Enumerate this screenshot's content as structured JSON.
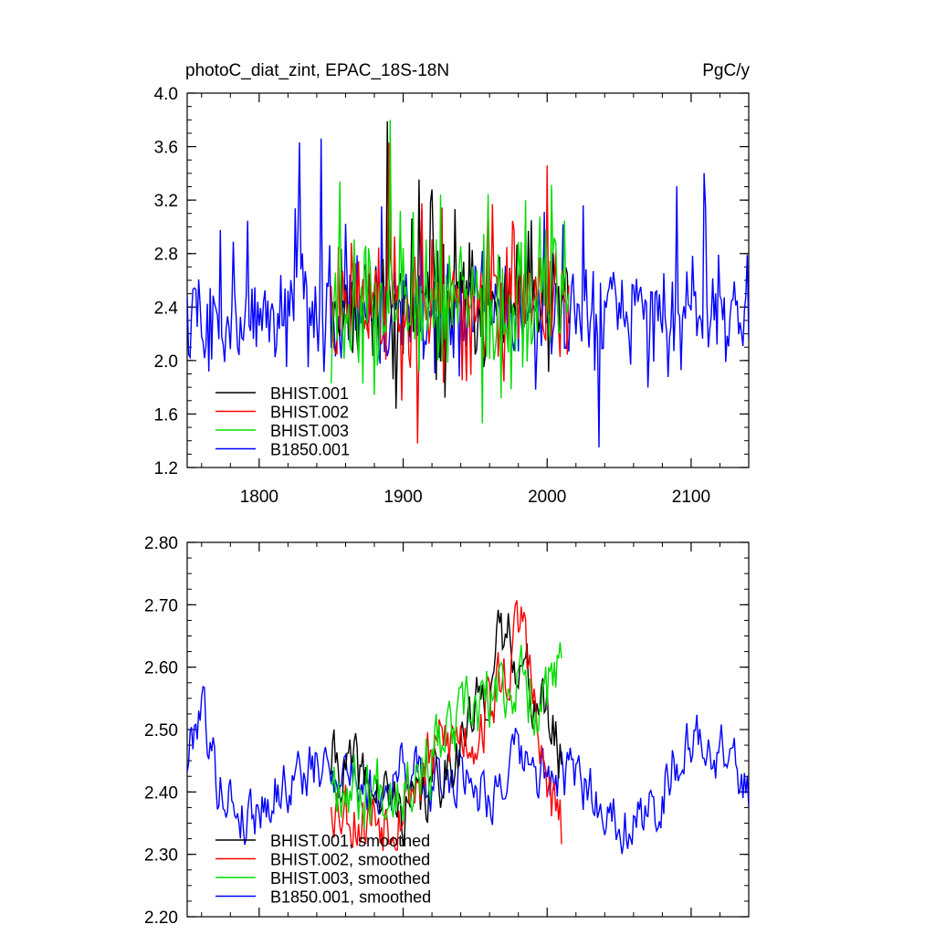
{
  "page": {
    "title": "photoC_diat_zint, EPAC_18S-18N",
    "units": "PgC/y"
  },
  "chart_data": [
    {
      "type": "line",
      "title": "photoC_diat_zint, EPAC_18S-18N",
      "units_label": "PgC/y",
      "xlim": [
        1750,
        2140
      ],
      "ylim": [
        1.2,
        4.0
      ],
      "x_ticks": [
        1800,
        1900,
        2000,
        2100
      ],
      "x_tick_labels": [
        "1800",
        "1900",
        "2000",
        "2100"
      ],
      "y_ticks": [
        1.2,
        1.6,
        2.0,
        2.4,
        2.8,
        3.2,
        3.6,
        4.0
      ],
      "y_tick_labels": [
        "1.2",
        "1.6",
        "2.0",
        "2.4",
        "2.8",
        "3.2",
        "3.6",
        "4.0"
      ],
      "legend_position": "bottom-left",
      "series": [
        {
          "name": "BHIST.001",
          "color": "#000000",
          "start": 1850,
          "end": 2015,
          "mean": 2.42,
          "amp": 0.5,
          "peak": 3.79,
          "low": 1.64,
          "seed": 11
        },
        {
          "name": "BHIST.002",
          "color": "#ff0000",
          "start": 1850,
          "end": 2015,
          "mean": 2.42,
          "amp": 0.5,
          "peak": 3.63,
          "low": 1.38,
          "seed": 23
        },
        {
          "name": "BHIST.003",
          "color": "#00dd00",
          "start": 1850,
          "end": 2015,
          "mean": 2.42,
          "amp": 0.5,
          "peak": 3.8,
          "low": 1.53,
          "seed": 37
        },
        {
          "name": "B1850.001",
          "color": "#0000ff",
          "start": 1750,
          "end": 2140,
          "mean": 2.35,
          "amp": 0.45,
          "peak": 3.66,
          "low": 1.35,
          "seed": 5
        }
      ]
    },
    {
      "type": "line",
      "xlim": [
        1750,
        2140
      ],
      "ylim": [
        2.2,
        2.8
      ],
      "x_ticks": [
        1800,
        1900,
        2000,
        2100
      ],
      "y_ticks": [
        2.2,
        2.3,
        2.4,
        2.5,
        2.6,
        2.7,
        2.8
      ],
      "y_tick_labels": [
        "2.20",
        "2.30",
        "2.40",
        "2.50",
        "2.60",
        "2.70",
        "2.80"
      ],
      "legend_position": "bottom-left",
      "series": [
        {
          "name": "BHIST.001, smoothed",
          "color": "#000000",
          "start": 1850,
          "end": 2010,
          "anchors": [
            [
              1850,
              2.45
            ],
            [
              1870,
              2.42
            ],
            [
              1890,
              2.38
            ],
            [
              1910,
              2.37
            ],
            [
              1930,
              2.45
            ],
            [
              1950,
              2.52
            ],
            [
              1965,
              2.62
            ],
            [
              1975,
              2.66
            ],
            [
              1985,
              2.58
            ],
            [
              2000,
              2.52
            ],
            [
              2010,
              2.45
            ]
          ],
          "noise": 0.045,
          "seed": 41
        },
        {
          "name": "BHIST.002, smoothed",
          "color": "#ff0000",
          "start": 1850,
          "end": 2010,
          "anchors": [
            [
              1850,
              2.4
            ],
            [
              1870,
              2.36
            ],
            [
              1890,
              2.37
            ],
            [
              1910,
              2.42
            ],
            [
              1930,
              2.48
            ],
            [
              1950,
              2.5
            ],
            [
              1970,
              2.58
            ],
            [
              1984,
              2.68
            ],
            [
              1995,
              2.45
            ],
            [
              2010,
              2.33
            ]
          ],
          "noise": 0.05,
          "seed": 53
        },
        {
          "name": "BHIST.003, smoothed",
          "color": "#00dd00",
          "start": 1850,
          "end": 2010,
          "anchors": [
            [
              1850,
              2.44
            ],
            [
              1870,
              2.4
            ],
            [
              1890,
              2.42
            ],
            [
              1910,
              2.44
            ],
            [
              1930,
              2.48
            ],
            [
              1950,
              2.53
            ],
            [
              1965,
              2.55
            ],
            [
              1978,
              2.58
            ],
            [
              1995,
              2.55
            ],
            [
              2010,
              2.58
            ]
          ],
          "noise": 0.05,
          "seed": 67
        },
        {
          "name": "B1850.001, smoothed",
          "color": "#0000ff",
          "start": 1750,
          "end": 2140,
          "anchors": [
            [
              1750,
              2.45
            ],
            [
              1760,
              2.56
            ],
            [
              1770,
              2.42
            ],
            [
              1790,
              2.36
            ],
            [
              1810,
              2.4
            ],
            [
              1830,
              2.43
            ],
            [
              1860,
              2.44
            ],
            [
              1880,
              2.4
            ],
            [
              1900,
              2.44
            ],
            [
              1920,
              2.4
            ],
            [
              1940,
              2.44
            ],
            [
              1960,
              2.4
            ],
            [
              1980,
              2.45
            ],
            [
              2000,
              2.42
            ],
            [
              2020,
              2.42
            ],
            [
              2050,
              2.36
            ],
            [
              2070,
              2.35
            ],
            [
              2090,
              2.46
            ],
            [
              2110,
              2.48
            ],
            [
              2130,
              2.45
            ],
            [
              2140,
              2.38
            ]
          ],
          "noise": 0.04,
          "seed": 79
        }
      ]
    }
  ]
}
